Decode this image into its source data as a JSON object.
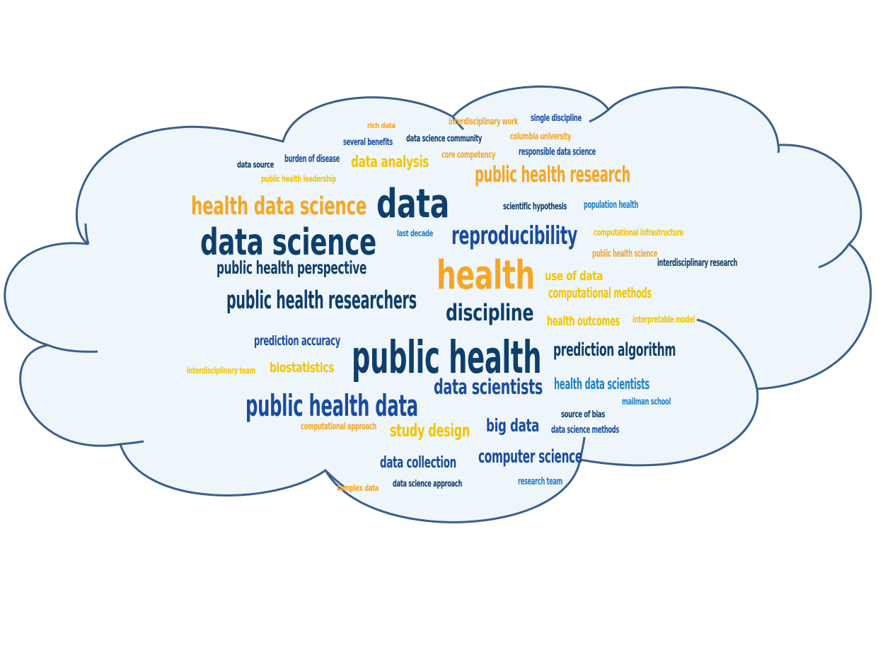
{
  "colors": {
    "navy": "#0e3e6b",
    "royal": "#1a4c9e",
    "sky": "#1f82c8",
    "orange": "#f5a623",
    "yellow": "#f2c500",
    "cloud_fill": "#eef5fb",
    "cloud_stroke": "#3a5f8a"
  },
  "words": [
    {
      "text": "rich data",
      "color": "orange"
    },
    {
      "text": "interdisciplinary work",
      "color": "orange"
    },
    {
      "text": "single discipline",
      "color": "royal"
    },
    {
      "text": "several benefits",
      "color": "royal"
    },
    {
      "text": "data science community",
      "color": "navy"
    },
    {
      "text": "columbia university",
      "color": "orange"
    },
    {
      "text": "data source",
      "color": "navy"
    },
    {
      "text": "burden of disease",
      "color": "royal"
    },
    {
      "text": "data analysis",
      "color": "yellow"
    },
    {
      "text": "core competency",
      "color": "orange"
    },
    {
      "text": "responsible data science",
      "color": "royal"
    },
    {
      "text": "public health leadership",
      "color": "yellow"
    },
    {
      "text": "public health research",
      "color": "orange"
    },
    {
      "text": "health data science",
      "color": "orange"
    },
    {
      "text": "data",
      "color": "navy"
    },
    {
      "text": "scientific hypothesis",
      "color": "navy"
    },
    {
      "text": "population health",
      "color": "sky"
    },
    {
      "text": "data science",
      "color": "navy"
    },
    {
      "text": "last decade",
      "color": "sky"
    },
    {
      "text": "reproducibility",
      "color": "royal"
    },
    {
      "text": "computational infrastructure",
      "color": "yellow"
    },
    {
      "text": "public health science",
      "color": "orange"
    },
    {
      "text": "public health perspective",
      "color": "navy"
    },
    {
      "text": "health",
      "color": "orange"
    },
    {
      "text": "interdisciplinary research",
      "color": "navy"
    },
    {
      "text": "use of data",
      "color": "yellow"
    },
    {
      "text": "computational methods",
      "color": "yellow"
    },
    {
      "text": "public health researchers",
      "color": "navy"
    },
    {
      "text": "discipline",
      "color": "navy"
    },
    {
      "text": "health outcomes",
      "color": "yellow"
    },
    {
      "text": "interpretable model",
      "color": "yellow"
    },
    {
      "text": "prediction accuracy",
      "color": "royal"
    },
    {
      "text": "public health",
      "color": "navy"
    },
    {
      "text": "prediction algorithm",
      "color": "navy"
    },
    {
      "text": "interdisciplinary team",
      "color": "yellow"
    },
    {
      "text": "biostatistics",
      "color": "yellow"
    },
    {
      "text": "data scientists",
      "color": "royal"
    },
    {
      "text": "health data scientists",
      "color": "sky"
    },
    {
      "text": "public health data",
      "color": "royal"
    },
    {
      "text": "mailman school",
      "color": "sky"
    },
    {
      "text": "source of bias",
      "color": "navy"
    },
    {
      "text": "computational approach",
      "color": "orange"
    },
    {
      "text": "study design",
      "color": "yellow"
    },
    {
      "text": "big data",
      "color": "royal"
    },
    {
      "text": "data science methods",
      "color": "royal"
    },
    {
      "text": "data collection",
      "color": "royal"
    },
    {
      "text": "computer science",
      "color": "royal"
    },
    {
      "text": "complex data",
      "color": "orange"
    },
    {
      "text": "data science approach",
      "color": "navy"
    },
    {
      "text": "research team",
      "color": "sky"
    }
  ]
}
